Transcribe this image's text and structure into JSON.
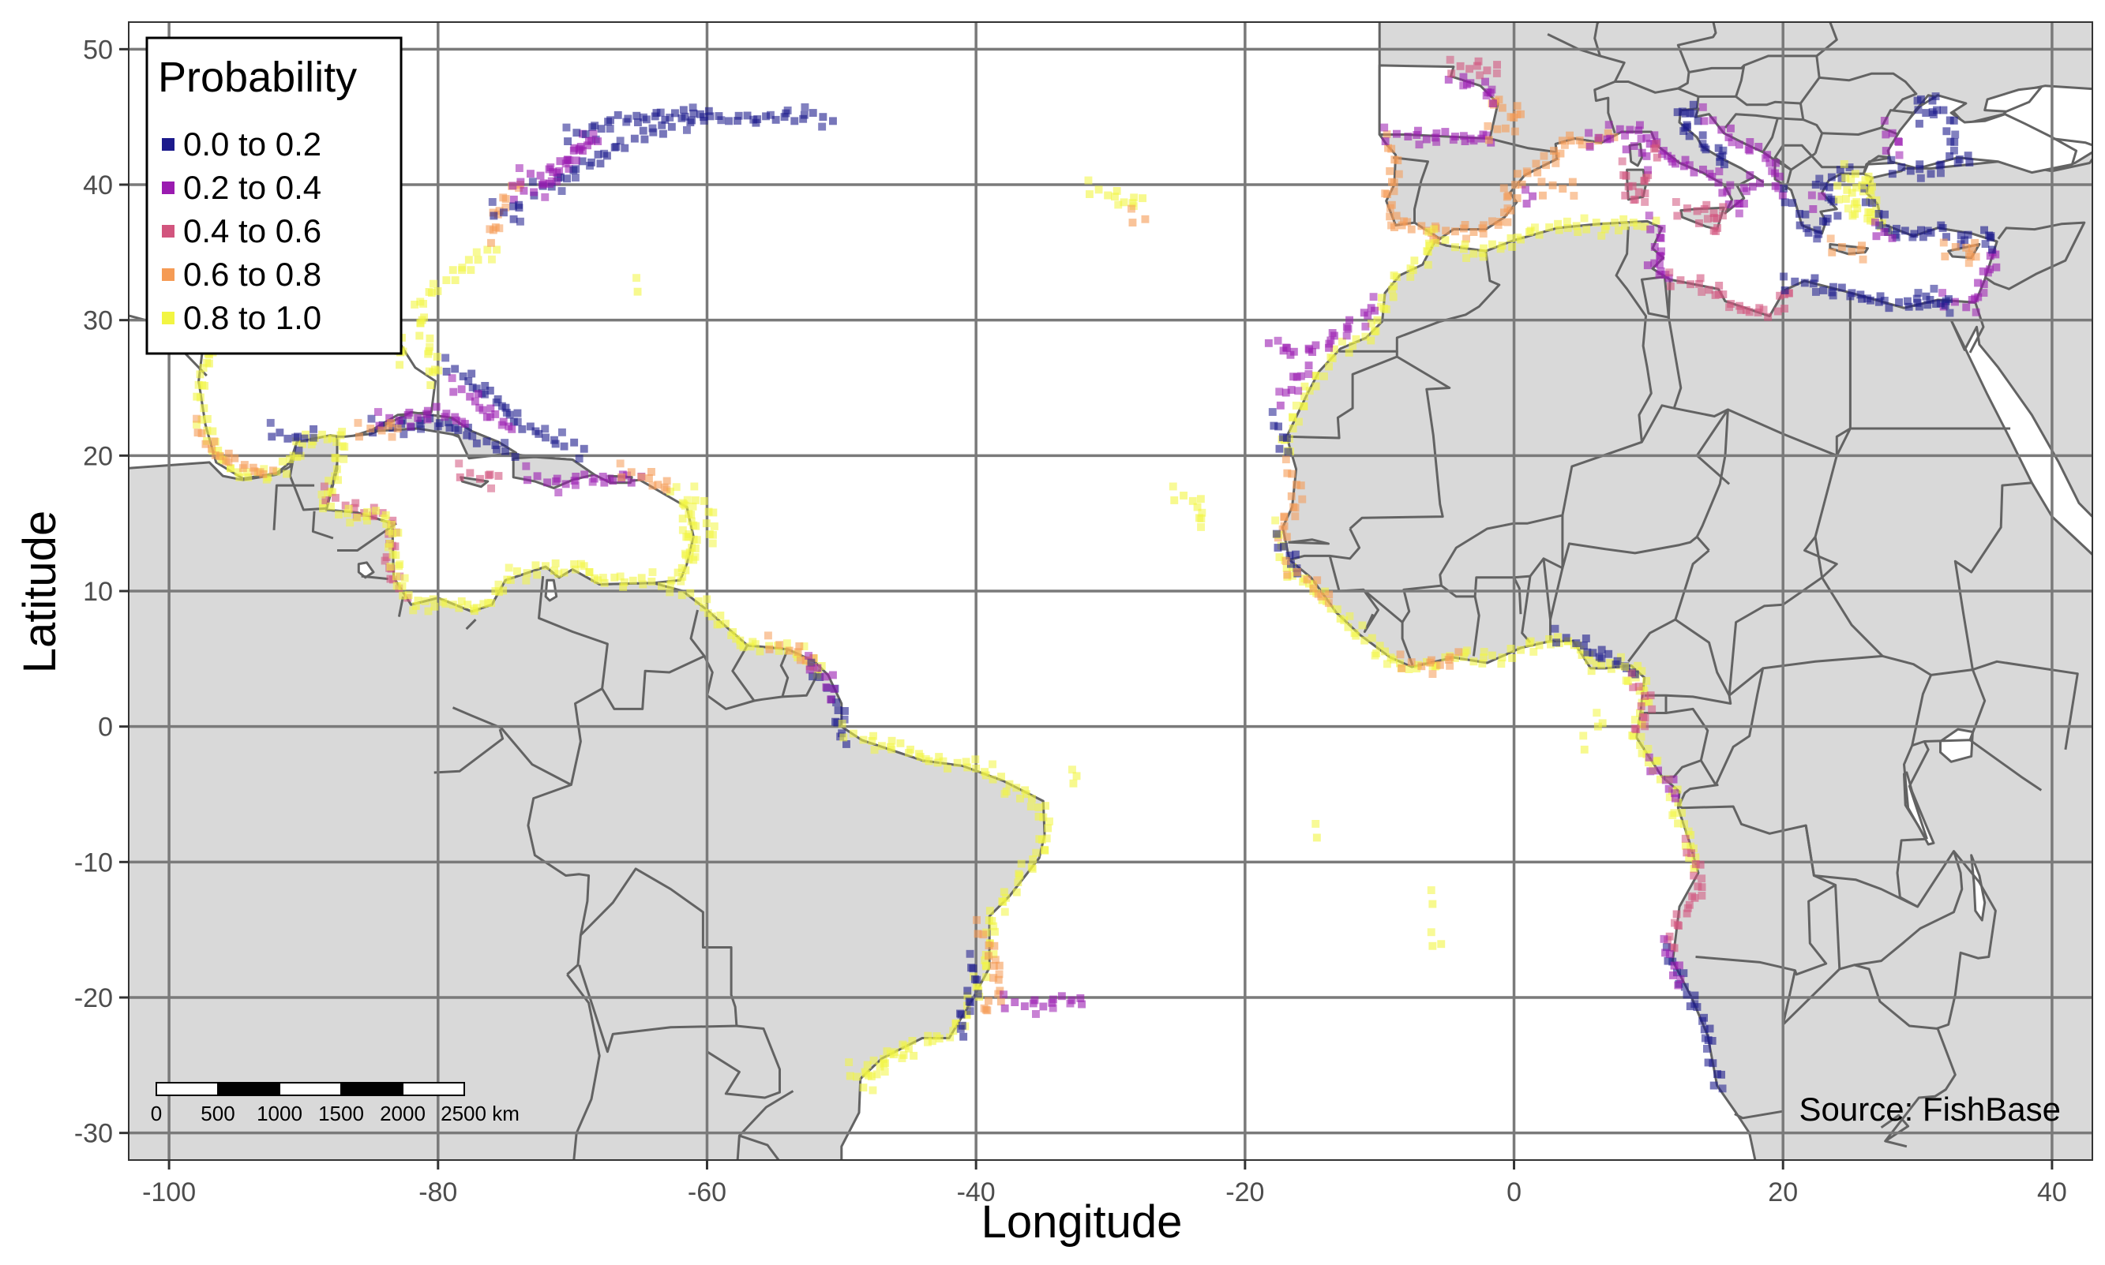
{
  "map": {
    "type": "species-occurrence-map",
    "xlabel": "Longitude",
    "ylabel": "Latitude",
    "xlim": [
      -103,
      43
    ],
    "ylim": [
      -32,
      52
    ],
    "x_ticks": [
      -100,
      -80,
      -60,
      -40,
      -20,
      0,
      20,
      40
    ],
    "y_ticks": [
      50,
      40,
      30,
      20,
      10,
      0,
      -10,
      -20,
      -30
    ],
    "grid": true,
    "source": "Source: FishBase",
    "colors": {
      "land": "#d9d9d9",
      "border": "#636363",
      "water": "#ffffff",
      "grid": "#7a7a7a"
    },
    "legend": {
      "title": "Probability",
      "placement": "top-left",
      "entries": [
        {
          "label": "0.0 to 0.2",
          "color": "#1c1a8c"
        },
        {
          "label": "0.2 to 0.4",
          "color": "#9a1bb0"
        },
        {
          "label": "0.4 to 0.6",
          "color": "#d2557e"
        },
        {
          "label": "0.6 to 0.8",
          "color": "#f59b55"
        },
        {
          "label": "0.8 to 1.0",
          "color": "#f2f542"
        }
      ]
    },
    "scale_bar": {
      "labels": [
        "0",
        "500",
        "1000",
        "1500",
        "2000",
        "2500 km"
      ]
    }
  }
}
